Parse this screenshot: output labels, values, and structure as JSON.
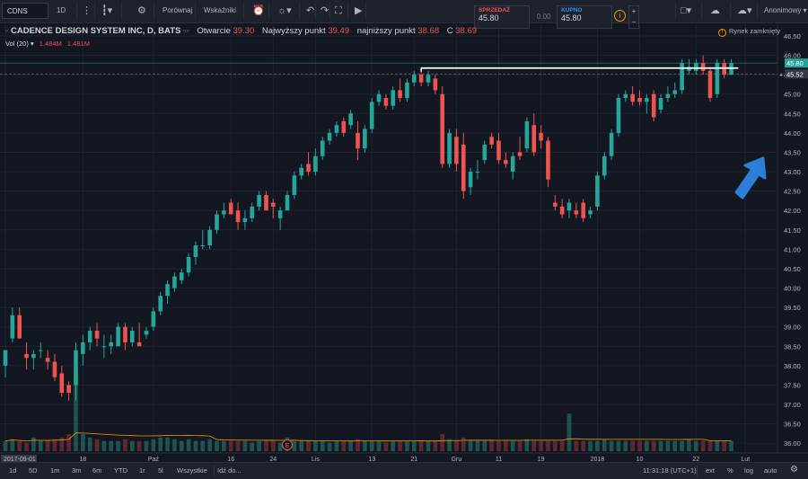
{
  "toolbar": {
    "symbol": "CDNS",
    "interval": "1D",
    "compare": "Porównaj",
    "indicators": "Wskaźniki",
    "account": "Anonimowy"
  },
  "trade": {
    "sell_label": "SPRZEDAŻ",
    "sell_value": "45.80",
    "spread": "0.00",
    "buy_label": "KUPNO",
    "buy_value": "45.80"
  },
  "legend": {
    "title": "CADENCE DESIGN SYSTEM INC, D, BATS",
    "open_label": "Otwarcie",
    "open_value": "39.30",
    "high_label": "Najwyższy punkt",
    "high_value": "39.49",
    "low_label": "najniższy punkt",
    "low_value": "38.68",
    "close_label": "C",
    "close_value": "38.69",
    "vol_label": "Vol (20)",
    "vol_value1": "1.484M",
    "vol_value2": "1.481M"
  },
  "market_status": "Rynek zamknięty",
  "colors": {
    "up": "#26a69a",
    "down": "#ef5350",
    "bg": "#131722",
    "arrow": "#2b7fd6"
  },
  "chart_data": {
    "type": "candlestick",
    "ylim": [
      35.75,
      46.8
    ],
    "y_ticks": [
      "36.00",
      "36.50",
      "37.00",
      "37.50",
      "38.00",
      "38.50",
      "39.00",
      "39.50",
      "40.00",
      "40.50",
      "41.00",
      "41.50",
      "42.00",
      "42.50",
      "43.00",
      "43.50",
      "44.00",
      "44.50",
      "45.00",
      "45.50",
      "46.00",
      "46.50"
    ],
    "x_ticks": [
      {
        "label": "2017-09-01",
        "i": 0
      },
      {
        "label": "18",
        "i": 11
      },
      {
        "label": "Paź",
        "i": 21
      },
      {
        "label": "16",
        "i": 32
      },
      {
        "label": "24",
        "i": 38
      },
      {
        "label": "Lis",
        "i": 44
      },
      {
        "label": "13",
        "i": 52
      },
      {
        "label": "21",
        "i": 58
      },
      {
        "label": "Gru",
        "i": 64
      },
      {
        "label": "11",
        "i": 70
      },
      {
        "label": "19",
        "i": 76
      },
      {
        "label": "2018",
        "i": 84
      },
      {
        "label": "10",
        "i": 90
      },
      {
        "label": "22",
        "i": 98
      },
      {
        "label": "Lut",
        "i": 105
      }
    ],
    "price_labels": [
      {
        "value": 45.8,
        "text": "45.80",
        "color": "#26a69a"
      },
      {
        "value": 45.52,
        "text": "45.52",
        "color": "#363a45"
      }
    ],
    "hline": {
      "value": 45.67,
      "start_i": 59,
      "end_i": 104
    },
    "event_marker": {
      "i": 40,
      "label": "E"
    },
    "ohlc": [
      [
        38.0,
        38.4,
        37.7,
        38.4
      ],
      [
        38.7,
        39.5,
        38.6,
        39.3
      ],
      [
        39.3,
        39.5,
        38.7,
        38.7
      ],
      [
        38.3,
        38.6,
        37.9,
        38.2
      ],
      [
        38.2,
        38.4,
        37.9,
        38.3
      ],
      [
        38.4,
        38.6,
        38.2,
        38.4
      ],
      [
        38.2,
        38.4,
        37.9,
        38.1
      ],
      [
        38.1,
        38.3,
        37.6,
        37.7
      ],
      [
        37.8,
        38.0,
        37.2,
        37.3
      ],
      [
        37.5,
        37.6,
        37.1,
        37.3
      ],
      [
        37.5,
        38.6,
        37.1,
        38.4
      ],
      [
        38.3,
        38.8,
        38.0,
        38.6
      ],
      [
        38.6,
        39.0,
        38.4,
        38.9
      ],
      [
        38.9,
        39.1,
        38.5,
        38.7
      ],
      [
        38.5,
        38.8,
        38.2,
        38.5
      ],
      [
        38.5,
        38.8,
        38.3,
        38.6
      ],
      [
        38.5,
        39.1,
        38.5,
        39.0
      ],
      [
        39.0,
        39.1,
        38.4,
        38.6
      ],
      [
        38.6,
        39.0,
        38.5,
        38.9
      ],
      [
        38.6,
        39.1,
        38.5,
        38.5
      ],
      [
        38.8,
        39.0,
        38.7,
        38.9
      ],
      [
        39.0,
        39.5,
        38.9,
        39.4
      ],
      [
        39.4,
        39.9,
        39.3,
        39.8
      ],
      [
        39.8,
        40.2,
        39.6,
        40.1
      ],
      [
        40.0,
        40.4,
        39.9,
        40.3
      ],
      [
        40.2,
        40.5,
        40.1,
        40.4
      ],
      [
        40.4,
        40.9,
        40.3,
        40.8
      ],
      [
        40.8,
        41.2,
        40.6,
        41.1
      ],
      [
        41.1,
        41.5,
        41.0,
        41.1
      ],
      [
        41.1,
        41.6,
        41.0,
        41.5
      ],
      [
        41.5,
        42.0,
        41.4,
        41.9
      ],
      [
        41.9,
        42.2,
        41.8,
        42.0
      ],
      [
        42.2,
        42.3,
        41.9,
        41.9
      ],
      [
        42.0,
        42.2,
        41.5,
        41.7
      ],
      [
        41.7,
        42.0,
        41.5,
        41.8
      ],
      [
        41.8,
        42.2,
        41.7,
        42.1
      ],
      [
        42.1,
        42.5,
        42.0,
        42.4
      ],
      [
        42.4,
        42.5,
        42.0,
        42.0
      ],
      [
        42.2,
        42.3,
        41.8,
        42.1
      ],
      [
        41.8,
        42.1,
        41.5,
        42.0
      ],
      [
        42.0,
        42.5,
        42.0,
        42.4
      ],
      [
        42.4,
        43.0,
        42.3,
        42.9
      ],
      [
        42.9,
        43.2,
        42.8,
        43.1
      ],
      [
        43.2,
        43.5,
        42.9,
        43.0
      ],
      [
        43.0,
        43.6,
        42.9,
        43.4
      ],
      [
        43.4,
        43.9,
        43.3,
        43.8
      ],
      [
        43.8,
        44.1,
        43.7,
        44.0
      ],
      [
        44.0,
        44.3,
        43.9,
        44.2
      ],
      [
        44.3,
        44.4,
        43.9,
        44.0
      ],
      [
        44.2,
        44.6,
        44.1,
        44.5
      ],
      [
        44.0,
        44.3,
        43.3,
        43.6
      ],
      [
        43.6,
        44.2,
        43.5,
        44.1
      ],
      [
        44.1,
        44.9,
        44.0,
        44.8
      ],
      [
        44.8,
        45.1,
        44.7,
        45.0
      ],
      [
        44.9,
        45.0,
        44.6,
        44.7
      ],
      [
        44.7,
        45.2,
        44.6,
        45.1
      ],
      [
        45.1,
        45.4,
        44.8,
        44.9
      ],
      [
        44.9,
        45.4,
        44.8,
        45.3
      ],
      [
        45.3,
        45.6,
        45.2,
        45.5
      ],
      [
        45.5,
        45.7,
        45.2,
        45.3
      ],
      [
        45.3,
        45.6,
        45.2,
        45.5
      ],
      [
        45.4,
        45.5,
        45.0,
        45.1
      ],
      [
        45.0,
        45.2,
        43.1,
        43.2
      ],
      [
        43.2,
        44.1,
        43.1,
        44.0
      ],
      [
        43.9,
        44.1,
        43.0,
        43.2
      ],
      [
        43.7,
        44.0,
        42.3,
        42.5
      ],
      [
        42.6,
        43.1,
        42.4,
        43.0
      ],
      [
        43.0,
        43.3,
        42.8,
        43.0
      ],
      [
        43.3,
        43.8,
        43.2,
        43.7
      ],
      [
        43.9,
        44.0,
        43.6,
        43.7
      ],
      [
        43.8,
        44.0,
        43.2,
        43.3
      ],
      [
        43.3,
        43.5,
        43.1,
        43.2
      ],
      [
        43.0,
        43.5,
        42.8,
        43.4
      ],
      [
        43.5,
        43.9,
        43.3,
        43.4
      ],
      [
        43.6,
        44.4,
        43.5,
        44.3
      ],
      [
        44.2,
        44.5,
        43.4,
        43.5
      ],
      [
        44.0,
        44.2,
        43.6,
        43.8
      ],
      [
        43.8,
        43.9,
        42.6,
        42.8
      ],
      [
        42.2,
        42.4,
        42.0,
        42.1
      ],
      [
        42.1,
        42.3,
        41.8,
        41.9
      ],
      [
        42.0,
        42.3,
        41.8,
        42.2
      ],
      [
        42.0,
        42.2,
        41.8,
        41.9
      ],
      [
        42.2,
        42.3,
        41.7,
        41.8
      ],
      [
        41.9,
        42.1,
        41.8,
        42.0
      ],
      [
        42.1,
        43.0,
        42.0,
        42.9
      ],
      [
        42.9,
        43.5,
        42.8,
        43.4
      ],
      [
        43.4,
        44.1,
        43.3,
        44.0
      ],
      [
        44.0,
        45.0,
        43.9,
        44.9
      ],
      [
        44.9,
        45.1,
        44.8,
        45.0
      ],
      [
        45.0,
        45.2,
        44.7,
        44.8
      ],
      [
        44.9,
        45.1,
        44.7,
        44.8
      ],
      [
        44.8,
        45.0,
        44.5,
        44.9
      ],
      [
        45.0,
        45.1,
        44.3,
        44.4
      ],
      [
        44.6,
        45.0,
        44.5,
        44.9
      ],
      [
        44.9,
        45.2,
        44.8,
        45.0
      ],
      [
        45.0,
        45.3,
        44.9,
        45.1
      ],
      [
        45.1,
        45.9,
        45.0,
        45.8
      ],
      [
        45.6,
        45.9,
        45.5,
        45.7
      ],
      [
        45.6,
        45.9,
        45.5,
        45.8
      ],
      [
        45.8,
        46.0,
        45.5,
        45.6
      ],
      [
        45.6,
        45.7,
        44.8,
        44.9
      ],
      [
        45.0,
        45.9,
        44.9,
        45.8
      ],
      [
        45.8,
        45.9,
        45.4,
        45.5
      ],
      [
        45.5,
        45.9,
        45.5,
        45.8
      ]
    ],
    "volume": [
      0.3,
      0.35,
      0.3,
      0.25,
      0.4,
      0.3,
      0.3,
      0.35,
      0.4,
      0.5,
      2.4,
      0.5,
      0.4,
      0.35,
      0.3,
      0.3,
      0.3,
      0.35,
      0.3,
      0.3,
      0.3,
      0.35,
      0.4,
      0.4,
      0.35,
      0.3,
      0.35,
      0.3,
      0.3,
      0.35,
      0.3,
      0.3,
      0.3,
      0.3,
      0.3,
      0.25,
      0.3,
      0.3,
      0.3,
      0.25,
      0.4,
      0.3,
      0.3,
      0.3,
      0.3,
      0.3,
      0.25,
      0.3,
      0.3,
      0.3,
      0.35,
      0.3,
      0.3,
      0.3,
      0.25,
      0.3,
      0.3,
      0.3,
      0.3,
      0.3,
      0.3,
      0.3,
      0.5,
      0.35,
      0.3,
      0.4,
      0.3,
      0.3,
      0.3,
      0.3,
      0.3,
      0.3,
      0.3,
      0.3,
      0.35,
      0.3,
      0.3,
      0.3,
      0.3,
      0.3,
      1.1,
      0.3,
      0.3,
      0.3,
      0.3,
      0.35,
      0.3,
      0.3,
      0.3,
      0.3,
      0.3,
      0.3,
      0.3,
      0.3,
      0.3,
      0.3,
      0.3,
      0.35,
      0.3,
      0.3,
      0.3,
      0.3,
      0.3,
      0.3
    ],
    "vol_max": 2.5
  },
  "bottom": {
    "ranges": [
      "1d",
      "5D",
      "1m",
      "3m",
      "6m",
      "YTD",
      "1r",
      "5l",
      "Wszystkie",
      "Idź do..."
    ],
    "time": "11:31:18 (UTC+1)",
    "options": [
      "ext",
      "%",
      "log",
      "auto"
    ]
  }
}
